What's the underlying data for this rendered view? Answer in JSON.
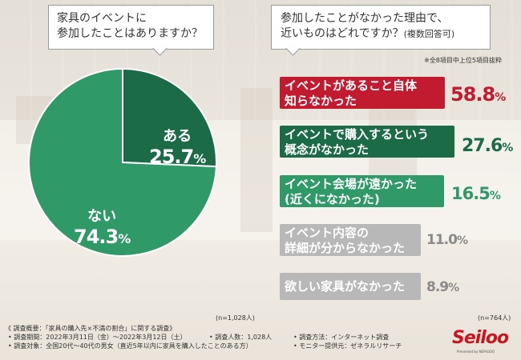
{
  "left": {
    "question_line1": "家具のイベントに",
    "question_line2": "参加したことはありますか？",
    "n": "(n=1,028人)"
  },
  "right": {
    "question_line1": "参加したことがなかった理由で、",
    "question_line2": "近いものはどれですか？",
    "question_suffix": "(複数回答可)",
    "subnote": "※全8項目中上位5項目抜粋",
    "n": "(n=764人)"
  },
  "footer": {
    "title": "《 調査概要：「家具の購入先×不満の割合」に関する調査》",
    "period": "• 調査期間：2022年3月11日（金）～2022年3月12日（土）",
    "count": "• 調査人数：1,028人",
    "method": "• 調査方法：インターネット調査",
    "target": "• 調査対象：全国20代～40代の男女（直近5年以内に家具を購入したことのある方）",
    "provider": "• モニター提供元：ゼネラルリサーチ"
  },
  "logo": {
    "name": "Seiloo",
    "tagline": "Presented by NEFAGOO"
  },
  "colors": {
    "green_dark": "#1b6b47",
    "green": "#2f9a67",
    "red": "#c21a2e",
    "gray": "#b8b8b8",
    "gray_text": "#8a8a8a"
  },
  "chart_data": [
    {
      "type": "pie",
      "title": "家具のイベントに参加したことはありますか？",
      "categories": [
        "ある",
        "ない"
      ],
      "values": [
        25.7,
        74.3
      ],
      "labels": [
        {
          "name": "ある",
          "value": "25.7",
          "unit": "%"
        },
        {
          "name": "ない",
          "value": "74.3",
          "unit": "%"
        }
      ],
      "n": "(n=1,028人)"
    },
    {
      "type": "bar",
      "title": "参加したことがなかった理由で、近いものはどれですか？(複数回答可)",
      "categories": [
        "イベントがあること自体知らなかった",
        "イベントで購入するという概念がなかった",
        "イベント会場が遠かった(近くになかった)",
        "イベント内容の詳細が分からなかった",
        "欲しい家具がなかった"
      ],
      "values": [
        58.8,
        27.6,
        16.5,
        11.0,
        8.9
      ],
      "items": [
        {
          "line1": "イベントがあること自体",
          "line2": "知らなかった",
          "value": "58.8",
          "unit": "%"
        },
        {
          "line1": "イベントで購入するという",
          "line2": "概念がなかった",
          "value": "27.6",
          "unit": "%"
        },
        {
          "line1": "イベント会場が遠かった",
          "line2": "(近くになかった)",
          "value": "16.5",
          "unit": "%"
        },
        {
          "line1": "イベント内容の",
          "line2": "詳細が分からなかった",
          "value": "11.0",
          "unit": "%"
        },
        {
          "line1": "欲しい家具がなかった",
          "line2": "",
          "value": "8.9",
          "unit": "%"
        }
      ],
      "n": "(n=764人)"
    }
  ]
}
